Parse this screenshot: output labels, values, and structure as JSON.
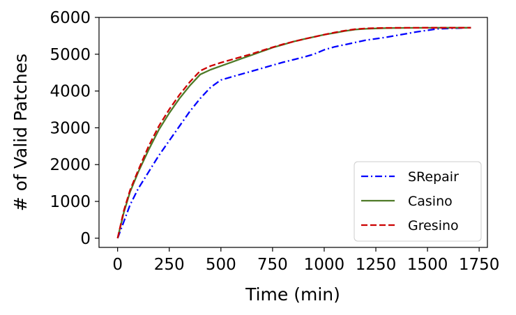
{
  "chart_data": {
    "type": "line",
    "title": "",
    "xlabel": "Time (min)",
    "ylabel": "# of Valid Patches",
    "xlim": [
      -90,
      1790
    ],
    "ylim": [
      -250,
      6000
    ],
    "xticks": [
      0,
      250,
      500,
      750,
      1000,
      1250,
      1500,
      1750
    ],
    "yticks": [
      0,
      1000,
      2000,
      3000,
      4000,
      5000,
      6000
    ],
    "grid": false,
    "legend_position": "lower-right",
    "series": [
      {
        "name": "SRepair",
        "color": "#0000ff",
        "linestyle": "dashdot",
        "x": [
          0,
          30,
          60,
          100,
          150,
          200,
          250,
          300,
          350,
          400,
          450,
          500,
          550,
          600,
          650,
          700,
          750,
          800,
          850,
          900,
          950,
          1000,
          1050,
          1100,
          1150,
          1200,
          1250,
          1300,
          1350,
          1400,
          1450,
          1500,
          1550,
          1600,
          1650,
          1710
        ],
        "y": [
          0,
          450,
          900,
          1350,
          1800,
          2250,
          2650,
          3050,
          3450,
          3800,
          4100,
          4300,
          4380,
          4460,
          4540,
          4620,
          4700,
          4780,
          4850,
          4920,
          5000,
          5120,
          5200,
          5260,
          5320,
          5380,
          5420,
          5460,
          5510,
          5560,
          5610,
          5650,
          5690,
          5700,
          5710,
          5720
        ]
      },
      {
        "name": "Casino",
        "color": "#4e7a27",
        "linestyle": "solid",
        "x": [
          0,
          30,
          60,
          100,
          150,
          200,
          250,
          300,
          350,
          400,
          450,
          500,
          550,
          600,
          650,
          700,
          750,
          800,
          850,
          900,
          950,
          1000,
          1050,
          1100,
          1150,
          1200,
          1250,
          1300,
          1400,
          1500,
          1600,
          1710
        ],
        "y": [
          0,
          700,
          1250,
          1800,
          2400,
          2950,
          3400,
          3800,
          4150,
          4450,
          4580,
          4680,
          4780,
          4880,
          4980,
          5080,
          5180,
          5260,
          5340,
          5410,
          5470,
          5530,
          5580,
          5630,
          5670,
          5690,
          5700,
          5710,
          5715,
          5718,
          5720,
          5720
        ]
      },
      {
        "name": "Gresino",
        "color": "#cc0000",
        "linestyle": "dashed",
        "x": [
          0,
          30,
          60,
          100,
          150,
          200,
          250,
          300,
          350,
          400,
          450,
          500,
          550,
          600,
          650,
          700,
          750,
          800,
          850,
          900,
          950,
          1000,
          1050,
          1100,
          1150,
          1200,
          1250,
          1300,
          1400,
          1500,
          1600,
          1710
        ],
        "y": [
          0,
          750,
          1300,
          1850,
          2500,
          3050,
          3500,
          3900,
          4250,
          4550,
          4680,
          4770,
          4850,
          4930,
          5010,
          5100,
          5190,
          5270,
          5340,
          5410,
          5470,
          5530,
          5590,
          5640,
          5680,
          5700,
          5710,
          5715,
          5718,
          5720,
          5720,
          5720
        ]
      }
    ]
  }
}
